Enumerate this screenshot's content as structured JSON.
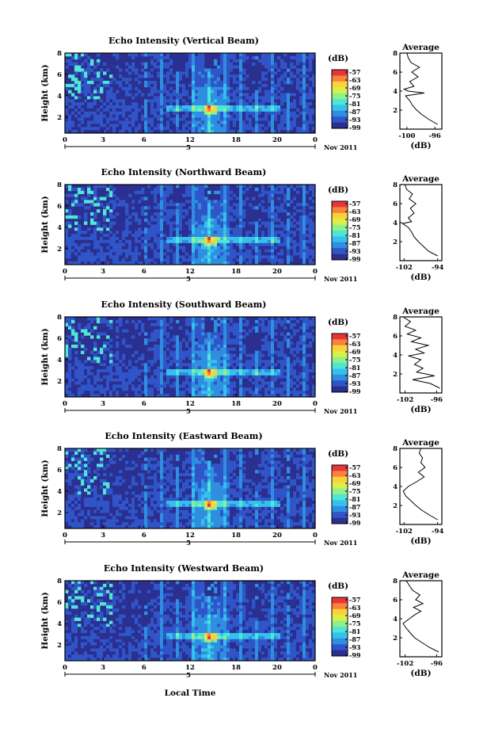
{
  "figure": {
    "xlabel": "Local Time",
    "date_label": "Nov 2011",
    "day_label": "5",
    "colorbar_unit": "(dB)",
    "profile_title": "Average",
    "profile_xlabel": "(dB)",
    "height_label": "Height (km)"
  },
  "colors": {
    "colormap": [
      "#2b2f8f",
      "#2f55c8",
      "#2f8ee0",
      "#35c0ee",
      "#4fe6d6",
      "#8ff08c",
      "#d9f048",
      "#fbd23c",
      "#f7843a",
      "#e8353a"
    ]
  },
  "chart_data": [
    {
      "type": "heatmap",
      "title": "Echo Intensity (Vertical Beam)",
      "xlabel": "Local Time",
      "ylabel": "Height (km)",
      "x_ticks": [
        "0",
        "3",
        "6",
        "12",
        "18",
        "20",
        "0"
      ],
      "y_ticks": [
        "2",
        "4",
        "6",
        "8"
      ],
      "xlim": [
        0,
        24
      ],
      "ylim": [
        0.5,
        8
      ],
      "colorbar": {
        "label": "(dB)",
        "ticks": [
          "-57",
          "-63",
          "-69",
          "-75",
          "-81",
          "-87",
          "-93",
          "-99"
        ]
      },
      "profile": {
        "title": "Average",
        "xlabel": "(dB)",
        "xticks": [
          "-100",
          "-96"
        ],
        "xlim": [
          -101,
          -95
        ],
        "ylim": [
          0,
          8
        ],
        "yticks": [
          "2",
          "4",
          "6",
          "8"
        ],
        "heights": [
          0.5,
          1.0,
          1.5,
          2.0,
          2.5,
          3.0,
          3.5,
          3.8,
          4.0,
          4.2,
          4.5,
          5.0,
          5.5,
          6.0,
          6.5,
          7.0,
          7.5,
          8.0
        ],
        "values": [
          -95.6,
          -96.8,
          -97.8,
          -98.6,
          -99.2,
          -99.6,
          -100.2,
          -97.5,
          -99.8,
          -100.4,
          -99.0,
          -99.6,
          -98.4,
          -99.3,
          -98.2,
          -99.4,
          -99.8,
          -100.0
        ]
      }
    },
    {
      "type": "heatmap",
      "title": "Echo Intensity (Northward Beam)",
      "xlabel": "Local Time",
      "ylabel": "Height (km)",
      "x_ticks": [
        "0",
        "3",
        "6",
        "12",
        "18",
        "20",
        "0"
      ],
      "y_ticks": [
        "2",
        "4",
        "6",
        "8"
      ],
      "xlim": [
        0,
        24
      ],
      "ylim": [
        0.5,
        8
      ],
      "colorbar": {
        "label": "(dB)",
        "ticks": [
          "-57",
          "-63",
          "-69",
          "-75",
          "-81",
          "-87",
          "-93",
          "-99"
        ]
      },
      "profile": {
        "title": "Average",
        "xlabel": "(dB)",
        "xticks": [
          "-102",
          "-94"
        ],
        "xlim": [
          -103,
          -93
        ],
        "ylim": [
          0,
          8
        ],
        "yticks": [
          "2",
          "4",
          "6",
          "8"
        ],
        "heights": [
          0.5,
          1.0,
          1.5,
          2.0,
          2.5,
          3.0,
          3.5,
          3.9,
          4.1,
          4.5,
          5.0,
          5.5,
          6.0,
          6.5,
          7.0,
          7.5,
          8.0
        ],
        "values": [
          -94.0,
          -96.2,
          -97.4,
          -98.6,
          -99.6,
          -100.2,
          -101.0,
          -102.4,
          -100.2,
          -101.0,
          -99.6,
          -100.5,
          -99.2,
          -100.8,
          -100.0,
          -101.4,
          -101.8
        ]
      }
    },
    {
      "type": "heatmap",
      "title": "Echo Intensity (Southward Beam)",
      "xlabel": "Local Time",
      "ylabel": "Height (km)",
      "x_ticks": [
        "0",
        "3",
        "6",
        "12",
        "18",
        "20",
        "0"
      ],
      "y_ticks": [
        "2",
        "4",
        "6",
        "8"
      ],
      "xlim": [
        0,
        24
      ],
      "ylim": [
        0.5,
        8
      ],
      "colorbar": {
        "label": "(dB)",
        "ticks": [
          "-57",
          "-63",
          "-69",
          "-75",
          "-81",
          "-87",
          "-93",
          "-99"
        ]
      },
      "profile": {
        "title": "Average",
        "xlabel": "(dB)",
        "xticks": [
          "-102",
          "-96"
        ],
        "xlim": [
          -103,
          -95
        ],
        "ylim": [
          0,
          8
        ],
        "yticks": [
          "2",
          "4",
          "6",
          "8"
        ],
        "heights": [
          0.5,
          1.0,
          1.4,
          1.8,
          2.2,
          2.6,
          3.0,
          3.5,
          3.9,
          4.2,
          4.6,
          5.0,
          5.4,
          5.8,
          6.2,
          6.6,
          7.0,
          7.5,
          8.0
        ],
        "values": [
          -95.4,
          -97.2,
          -100.6,
          -96.4,
          -99.8,
          -98.6,
          -100.2,
          -99.0,
          -101.4,
          -98.4,
          -100.0,
          -97.6,
          -100.8,
          -99.0,
          -101.6,
          -100.0,
          -102.0,
          -101.0,
          -102.4
        ]
      }
    },
    {
      "type": "heatmap",
      "title": "Echo Intensity (Eastward Beam)",
      "xlabel": "Local Time",
      "ylabel": "Height (km)",
      "x_ticks": [
        "0",
        "3",
        "6",
        "12",
        "18",
        "20",
        "0"
      ],
      "y_ticks": [
        "2",
        "4",
        "6",
        "8"
      ],
      "xlim": [
        0,
        24
      ],
      "ylim": [
        0.5,
        8
      ],
      "colorbar": {
        "label": "(dB)",
        "ticks": [
          "-57",
          "-63",
          "-69",
          "-75",
          "-81",
          "-87",
          "-93",
          "-99"
        ]
      },
      "profile": {
        "title": "Average",
        "xlabel": "(dB)",
        "xticks": [
          "-102",
          "-94"
        ],
        "xlim": [
          -103,
          -93
        ],
        "ylim": [
          0,
          8
        ],
        "yticks": [
          "2",
          "4",
          "6",
          "8"
        ],
        "heights": [
          0.5,
          1.0,
          1.5,
          2.0,
          2.5,
          3.0,
          3.5,
          4.0,
          4.5,
          5.0,
          5.5,
          6.0,
          6.5,
          7.0,
          7.5,
          8.0
        ],
        "values": [
          -94.0,
          -96.0,
          -97.8,
          -99.2,
          -100.4,
          -101.6,
          -102.2,
          -101.0,
          -99.0,
          -97.2,
          -98.6,
          -97.0,
          -98.0,
          -97.6,
          -98.4,
          -98.0
        ]
      }
    },
    {
      "type": "heatmap",
      "title": "Echo Intensity (Westward Beam)",
      "xlabel": "Local Time",
      "ylabel": "Height (km)",
      "x_ticks": [
        "0",
        "3",
        "6",
        "12",
        "18",
        "20",
        "0"
      ],
      "y_ticks": [
        "2",
        "4",
        "6",
        "8"
      ],
      "xlim": [
        0,
        24
      ],
      "ylim": [
        0.5,
        8
      ],
      "colorbar": {
        "label": "(dB)",
        "ticks": [
          "-57",
          "-63",
          "-69",
          "-75",
          "-81",
          "-87",
          "-93",
          "-99"
        ]
      },
      "profile": {
        "title": "Average",
        "xlabel": "(dB)",
        "xticks": [
          "-102",
          "-96"
        ],
        "xlim": [
          -103,
          -95
        ],
        "ylim": [
          0,
          8
        ],
        "yticks": [
          "2",
          "4",
          "6",
          "8"
        ],
        "heights": [
          0.5,
          1.0,
          1.5,
          2.0,
          2.5,
          3.0,
          3.5,
          4.0,
          4.4,
          4.8,
          5.2,
          5.6,
          6.0,
          6.5,
          7.0,
          7.5,
          8.0
        ],
        "values": [
          -95.6,
          -97.4,
          -98.8,
          -100.2,
          -101.0,
          -101.8,
          -102.4,
          -101.2,
          -100.2,
          -99.0,
          -100.4,
          -98.6,
          -100.0,
          -99.2,
          -100.6,
          -101.2,
          -101.8
        ]
      }
    }
  ]
}
